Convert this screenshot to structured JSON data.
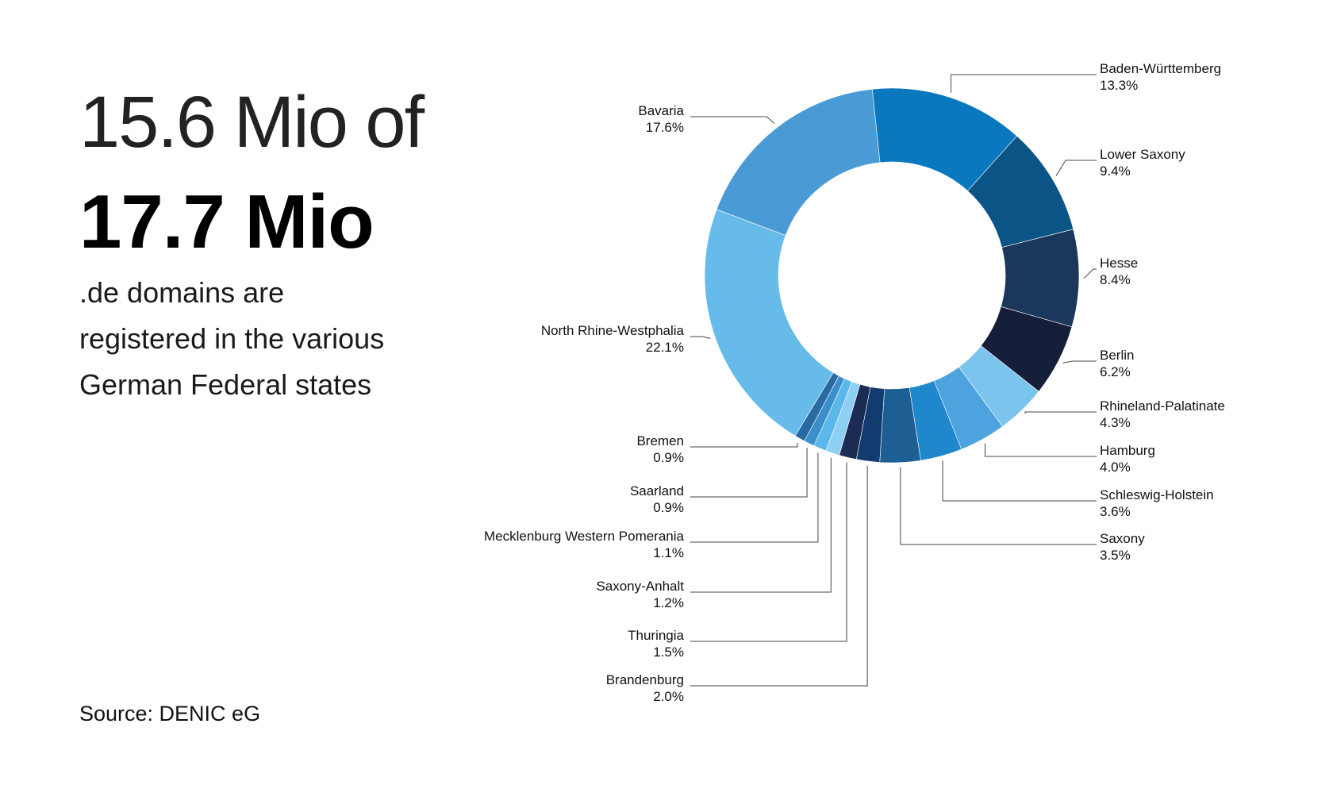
{
  "headline": {
    "light": "15.6 Mio of",
    "bold": "17.7 Mio",
    "subtitle_lines": [
      ".de domains are",
      "registered in the various",
      "German Federal states"
    ]
  },
  "source": "Source: DENIC eG",
  "chart_data": {
    "type": "pie",
    "donut": true,
    "total_registered_mio": 15.6,
    "total_domains_mio": 17.7,
    "slices": [
      {
        "name": "Baden-Württemberg",
        "value": 13.3,
        "label": "13.3%",
        "color": "#0a78be",
        "side": "right"
      },
      {
        "name": "Lower Saxony",
        "value": 9.4,
        "label": "9.4%",
        "color": "#0b5486",
        "side": "right"
      },
      {
        "name": "Hesse",
        "value": 8.4,
        "label": "8.4%",
        "color": "#1c375c",
        "side": "right"
      },
      {
        "name": "Berlin",
        "value": 6.2,
        "label": "6.2%",
        "color": "#161f3a",
        "side": "right"
      },
      {
        "name": "Rhineland-Palatinate",
        "value": 4.3,
        "label": "4.3%",
        "color": "#7ac4ee",
        "side": "right"
      },
      {
        "name": "Hamburg",
        "value": 4.0,
        "label": "4.0%",
        "color": "#4ca3de",
        "side": "right"
      },
      {
        "name": "Schleswig-Holstein",
        "value": 3.6,
        "label": "3.6%",
        "color": "#1f88cc",
        "side": "right"
      },
      {
        "name": "Saxony",
        "value": 3.5,
        "label": "3.5%",
        "color": "#1d5e93",
        "side": "right"
      },
      {
        "name": "Brandenburg",
        "value": 2.0,
        "label": "2.0%",
        "color": "#123c70",
        "side": "left"
      },
      {
        "name": "Thuringia",
        "value": 1.5,
        "label": "1.5%",
        "color": "#1c2b53",
        "side": "left"
      },
      {
        "name": "Saxony-Anhalt",
        "value": 1.2,
        "label": "1.2%",
        "color": "#8ecff4",
        "side": "left"
      },
      {
        "name": "Mecklenburg Western Pomerania",
        "value": 1.1,
        "label": "1.1%",
        "color": "#5cb8ea",
        "side": "left"
      },
      {
        "name": "Saarland",
        "value": 0.9,
        "label": "0.9%",
        "color": "#3b8fcb",
        "side": "left"
      },
      {
        "name": "Bremen",
        "value": 0.9,
        "label": "0.9%",
        "color": "#2a6aa3",
        "side": "left"
      },
      {
        "name": "North Rhine-Westphalia",
        "value": 22.1,
        "label": "22.1%",
        "color": "#66bbea",
        "side": "left"
      },
      {
        "name": "Bavaria",
        "value": 17.6,
        "label": "17.6%",
        "color": "#4a9ad6",
        "side": "left"
      }
    ]
  }
}
